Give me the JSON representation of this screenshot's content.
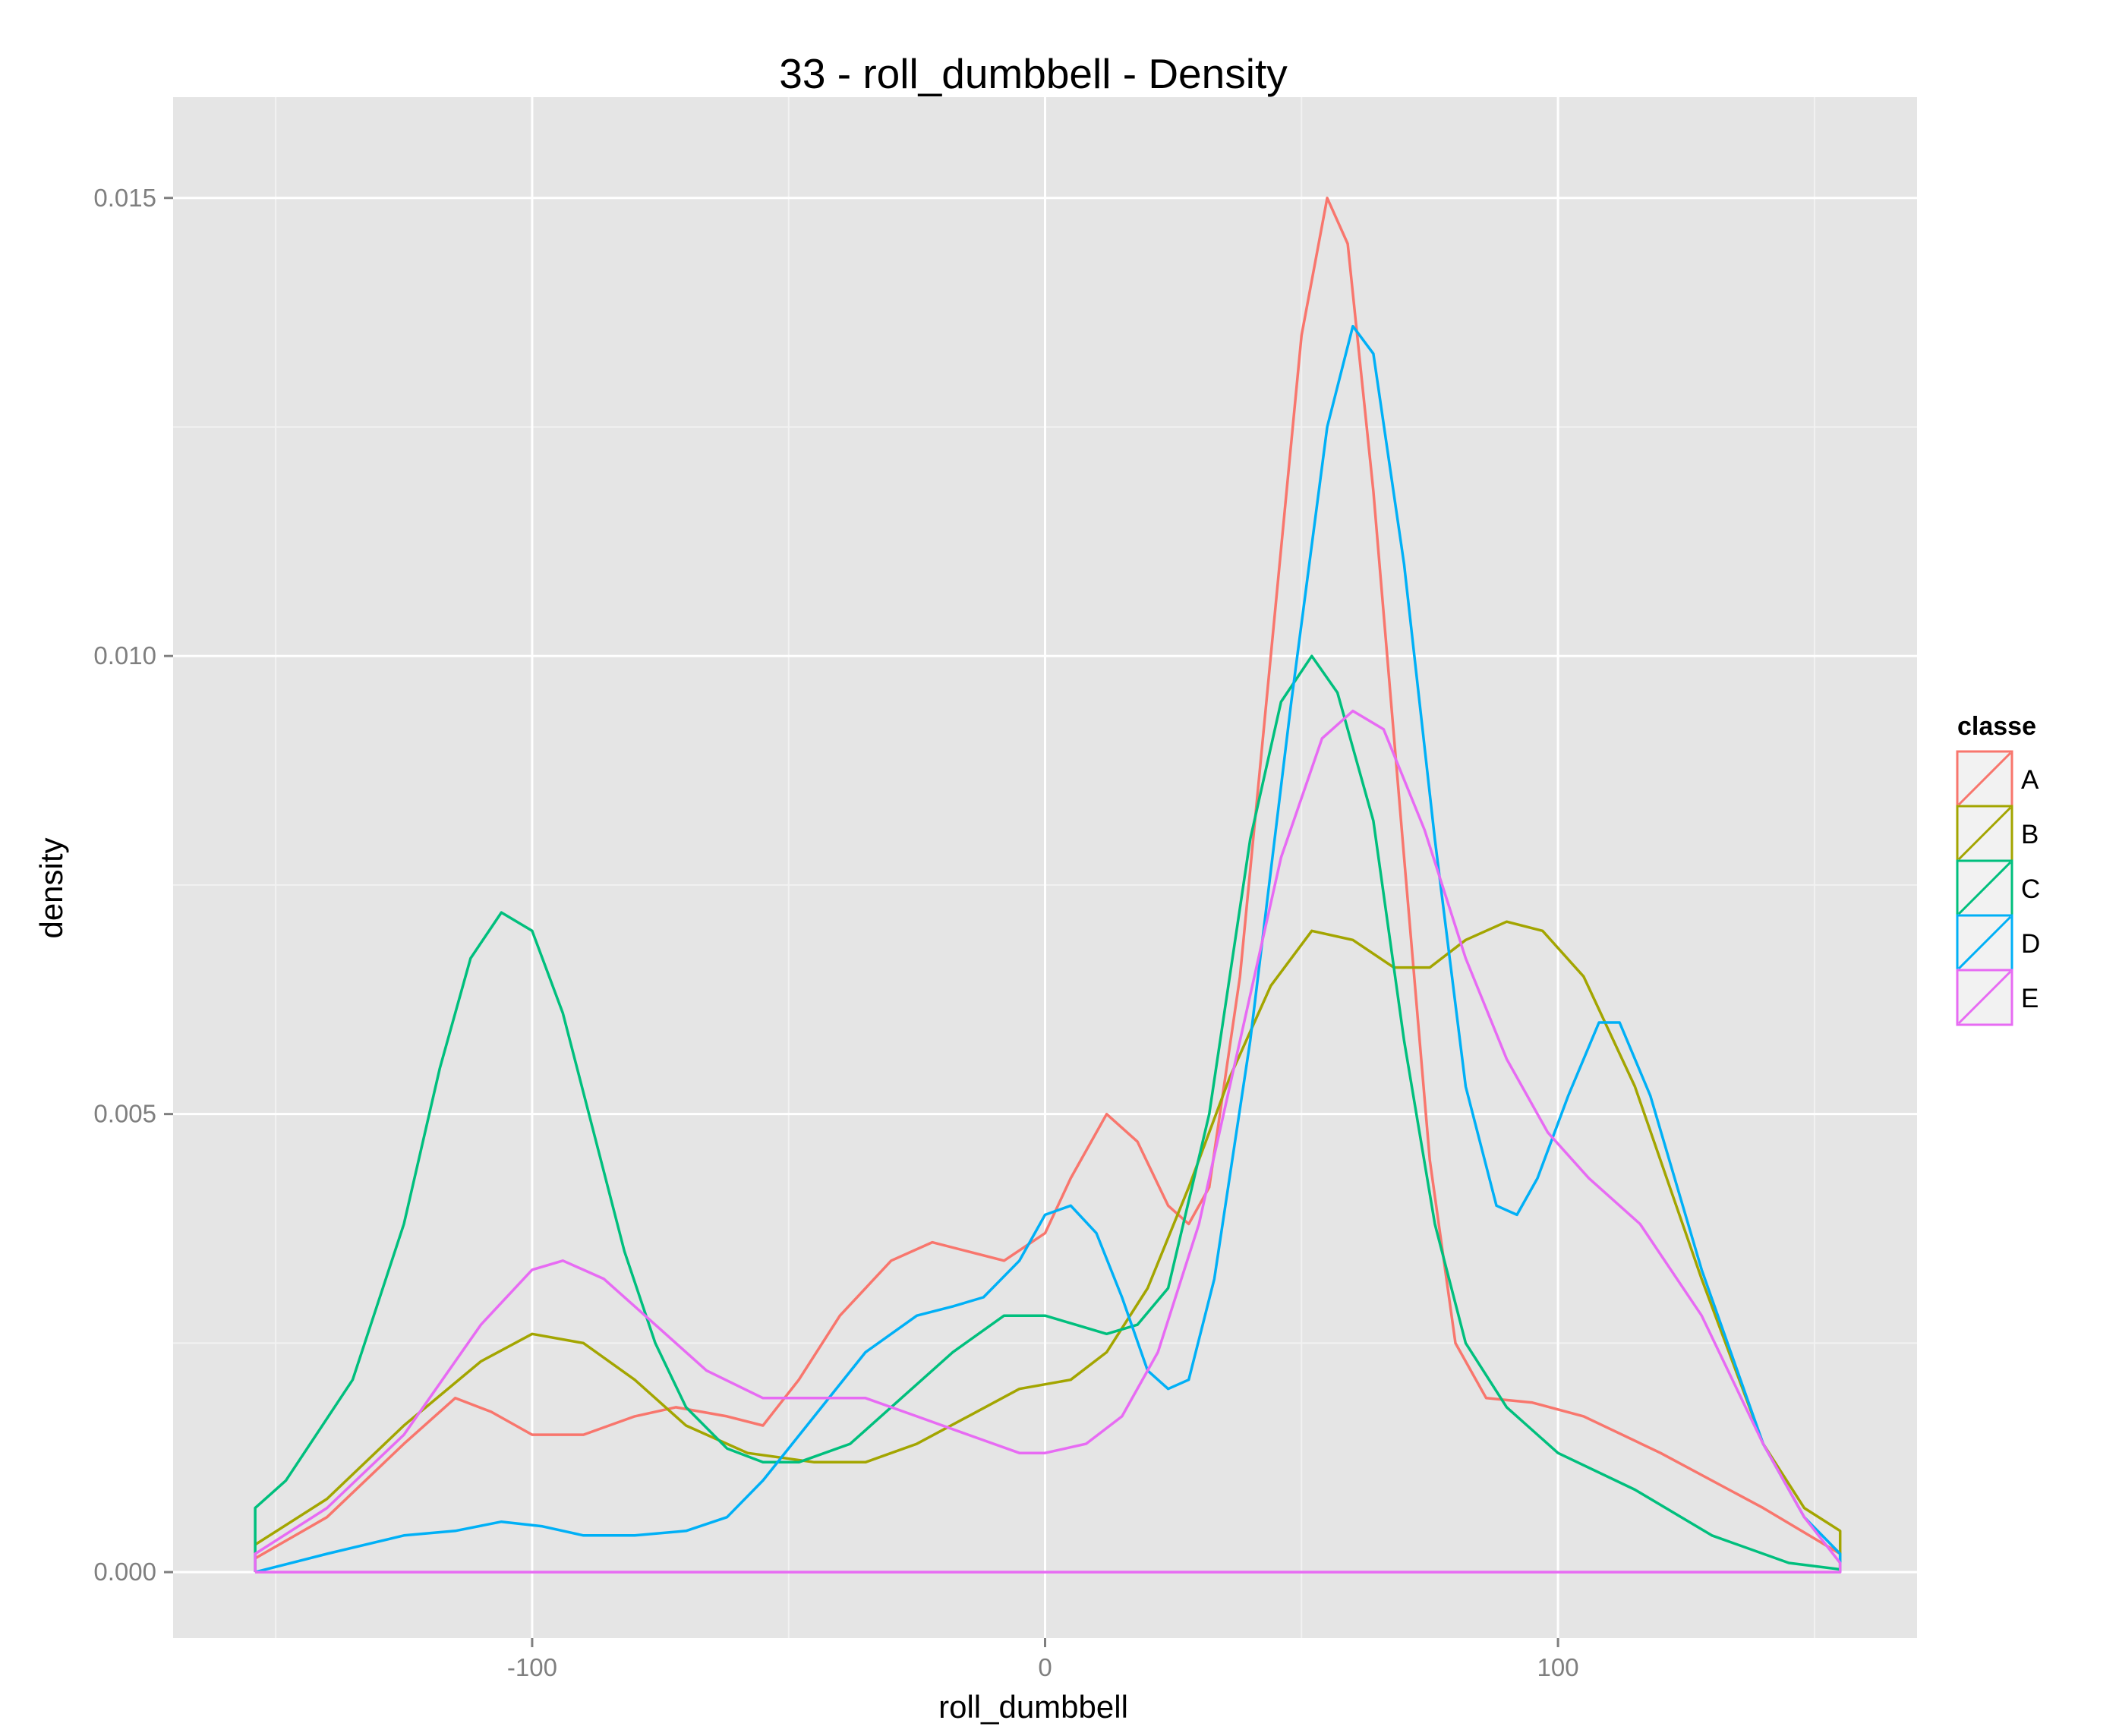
{
  "chart_data": {
    "type": "line",
    "title": "33 - roll_dumbbell - Density",
    "xlabel": "roll_dumbbell",
    "ylabel": "density",
    "xlim": [
      -170,
      170
    ],
    "ylim": [
      -0.00072,
      0.0161
    ],
    "x_ticks": [
      -100,
      0,
      100
    ],
    "x_tick_labels": [
      "-100",
      "0",
      "100"
    ],
    "y_ticks": [
      0.0,
      0.005,
      0.01,
      0.015
    ],
    "y_tick_labels": [
      "0.000",
      "0.005",
      "0.010",
      "0.015"
    ],
    "grid": true,
    "background": "#E5E5E5",
    "legend": {
      "title": "classe",
      "position": "right"
    },
    "series": [
      {
        "name": "A",
        "color": "#F8766D",
        "points": [
          [
            -154,
            0.00015
          ],
          [
            -140,
            0.0006
          ],
          [
            -125,
            0.0014
          ],
          [
            -115,
            0.0019
          ],
          [
            -108,
            0.00175
          ],
          [
            -100,
            0.0015
          ],
          [
            -90,
            0.0015
          ],
          [
            -80,
            0.0017
          ],
          [
            -72,
            0.0018
          ],
          [
            -62,
            0.0017
          ],
          [
            -55,
            0.0016
          ],
          [
            -48,
            0.0021
          ],
          [
            -40,
            0.0028
          ],
          [
            -30,
            0.0034
          ],
          [
            -22,
            0.0036
          ],
          [
            -15,
            0.0035
          ],
          [
            -8,
            0.0034
          ],
          [
            0,
            0.0037
          ],
          [
            5,
            0.0043
          ],
          [
            12,
            0.005
          ],
          [
            18,
            0.0047
          ],
          [
            24,
            0.004
          ],
          [
            28,
            0.0038
          ],
          [
            32,
            0.0042
          ],
          [
            38,
            0.0065
          ],
          [
            44,
            0.01
          ],
          [
            50,
            0.0135
          ],
          [
            55,
            0.015
          ],
          [
            59,
            0.0145
          ],
          [
            64,
            0.0118
          ],
          [
            70,
            0.0078
          ],
          [
            75,
            0.0045
          ],
          [
            80,
            0.0025
          ],
          [
            86,
            0.0019
          ],
          [
            95,
            0.00185
          ],
          [
            105,
            0.0017
          ],
          [
            120,
            0.0013
          ],
          [
            140,
            0.0007
          ],
          [
            155,
            0.0002
          ],
          [
            155,
            0.0
          ]
        ]
      },
      {
        "name": "B",
        "color": "#A3A500",
        "points": [
          [
            -154,
            0.0003
          ],
          [
            -140,
            0.0008
          ],
          [
            -125,
            0.0016
          ],
          [
            -110,
            0.0023
          ],
          [
            -100,
            0.0026
          ],
          [
            -90,
            0.0025
          ],
          [
            -80,
            0.0021
          ],
          [
            -70,
            0.0016
          ],
          [
            -58,
            0.0013
          ],
          [
            -45,
            0.0012
          ],
          [
            -35,
            0.0012
          ],
          [
            -25,
            0.0014
          ],
          [
            -15,
            0.0017
          ],
          [
            -5,
            0.002
          ],
          [
            5,
            0.0021
          ],
          [
            12,
            0.0024
          ],
          [
            20,
            0.0031
          ],
          [
            28,
            0.0042
          ],
          [
            36,
            0.0054
          ],
          [
            44,
            0.0064
          ],
          [
            52,
            0.007
          ],
          [
            60,
            0.0069
          ],
          [
            68,
            0.0066
          ],
          [
            75,
            0.0066
          ],
          [
            82,
            0.0069
          ],
          [
            90,
            0.0071
          ],
          [
            97,
            0.007
          ],
          [
            105,
            0.0065
          ],
          [
            115,
            0.0053
          ],
          [
            128,
            0.0032
          ],
          [
            140,
            0.0014
          ],
          [
            148,
            0.0007
          ],
          [
            155,
            0.00045
          ],
          [
            155,
            0.0
          ]
        ]
      },
      {
        "name": "C",
        "color": "#00BF7D",
        "points": [
          [
            -154,
            0.0
          ],
          [
            -154,
            0.0007
          ],
          [
            -148,
            0.001
          ],
          [
            -135,
            0.0021
          ],
          [
            -125,
            0.0038
          ],
          [
            -118,
            0.0055
          ],
          [
            -112,
            0.0067
          ],
          [
            -106,
            0.0072
          ],
          [
            -100,
            0.007
          ],
          [
            -94,
            0.0061
          ],
          [
            -88,
            0.0048
          ],
          [
            -82,
            0.0035
          ],
          [
            -76,
            0.0025
          ],
          [
            -70,
            0.0018
          ],
          [
            -62,
            0.00135
          ],
          [
            -55,
            0.0012
          ],
          [
            -48,
            0.0012
          ],
          [
            -38,
            0.0014
          ],
          [
            -28,
            0.0019
          ],
          [
            -18,
            0.0024
          ],
          [
            -8,
            0.0028
          ],
          [
            0,
            0.0028
          ],
          [
            6,
            0.0027
          ],
          [
            12,
            0.0026
          ],
          [
            18,
            0.0027
          ],
          [
            24,
            0.0031
          ],
          [
            32,
            0.005
          ],
          [
            40,
            0.008
          ],
          [
            46,
            0.0095
          ],
          [
            52,
            0.01
          ],
          [
            57,
            0.0096
          ],
          [
            64,
            0.0082
          ],
          [
            70,
            0.0058
          ],
          [
            76,
            0.0038
          ],
          [
            82,
            0.0025
          ],
          [
            90,
            0.0018
          ],
          [
            100,
            0.0013
          ],
          [
            115,
            0.0009
          ],
          [
            130,
            0.0004
          ],
          [
            145,
            0.0001
          ],
          [
            155,
            3e-05
          ],
          [
            155,
            0.0
          ]
        ]
      },
      {
        "name": "D",
        "color": "#00B0F6",
        "points": [
          [
            -154,
            0.0
          ],
          [
            -140,
            0.0002
          ],
          [
            -125,
            0.0004
          ],
          [
            -115,
            0.00045
          ],
          [
            -106,
            0.00055
          ],
          [
            -98,
            0.0005
          ],
          [
            -90,
            0.0004
          ],
          [
            -80,
            0.0004
          ],
          [
            -70,
            0.00045
          ],
          [
            -62,
            0.0006
          ],
          [
            -55,
            0.001
          ],
          [
            -45,
            0.0017
          ],
          [
            -35,
            0.0024
          ],
          [
            -25,
            0.0028
          ],
          [
            -18,
            0.0029
          ],
          [
            -12,
            0.003
          ],
          [
            -5,
            0.0034
          ],
          [
            0,
            0.0039
          ],
          [
            5,
            0.004
          ],
          [
            10,
            0.0037
          ],
          [
            15,
            0.003
          ],
          [
            20,
            0.0022
          ],
          [
            24,
            0.002
          ],
          [
            28,
            0.0021
          ],
          [
            33,
            0.0032
          ],
          [
            40,
            0.0058
          ],
          [
            48,
            0.0095
          ],
          [
            55,
            0.0125
          ],
          [
            60,
            0.0136
          ],
          [
            64,
            0.0133
          ],
          [
            70,
            0.011
          ],
          [
            76,
            0.008
          ],
          [
            82,
            0.0053
          ],
          [
            88,
            0.004
          ],
          [
            92,
            0.0039
          ],
          [
            96,
            0.0043
          ],
          [
            102,
            0.0052
          ],
          [
            108,
            0.006
          ],
          [
            112,
            0.006
          ],
          [
            118,
            0.0052
          ],
          [
            128,
            0.0033
          ],
          [
            140,
            0.0014
          ],
          [
            148,
            0.0006
          ],
          [
            155,
            0.0002
          ],
          [
            155,
            0.0
          ]
        ]
      },
      {
        "name": "E",
        "color": "#E76BF3",
        "points": [
          [
            -154,
            0.0
          ],
          [
            -154,
            0.0002
          ],
          [
            -140,
            0.0007
          ],
          [
            -125,
            0.0015
          ],
          [
            -110,
            0.0027
          ],
          [
            -100,
            0.0033
          ],
          [
            -94,
            0.0034
          ],
          [
            -86,
            0.0032
          ],
          [
            -76,
            0.0027
          ],
          [
            -66,
            0.0022
          ],
          [
            -55,
            0.0019
          ],
          [
            -45,
            0.0019
          ],
          [
            -35,
            0.0019
          ],
          [
            -25,
            0.0017
          ],
          [
            -15,
            0.0015
          ],
          [
            -5,
            0.0013
          ],
          [
            0,
            0.0013
          ],
          [
            8,
            0.0014
          ],
          [
            15,
            0.0017
          ],
          [
            22,
            0.0024
          ],
          [
            30,
            0.0038
          ],
          [
            38,
            0.0058
          ],
          [
            46,
            0.0078
          ],
          [
            54,
            0.0091
          ],
          [
            60,
            0.0094
          ],
          [
            66,
            0.0092
          ],
          [
            74,
            0.0081
          ],
          [
            82,
            0.0067
          ],
          [
            90,
            0.0056
          ],
          [
            98,
            0.0048
          ],
          [
            106,
            0.0043
          ],
          [
            116,
            0.0038
          ],
          [
            128,
            0.0028
          ],
          [
            140,
            0.0014
          ],
          [
            148,
            0.0006
          ],
          [
            155,
            0.0001
          ],
          [
            155,
            0.0
          ],
          [
            -154,
            0.0
          ]
        ]
      }
    ]
  }
}
